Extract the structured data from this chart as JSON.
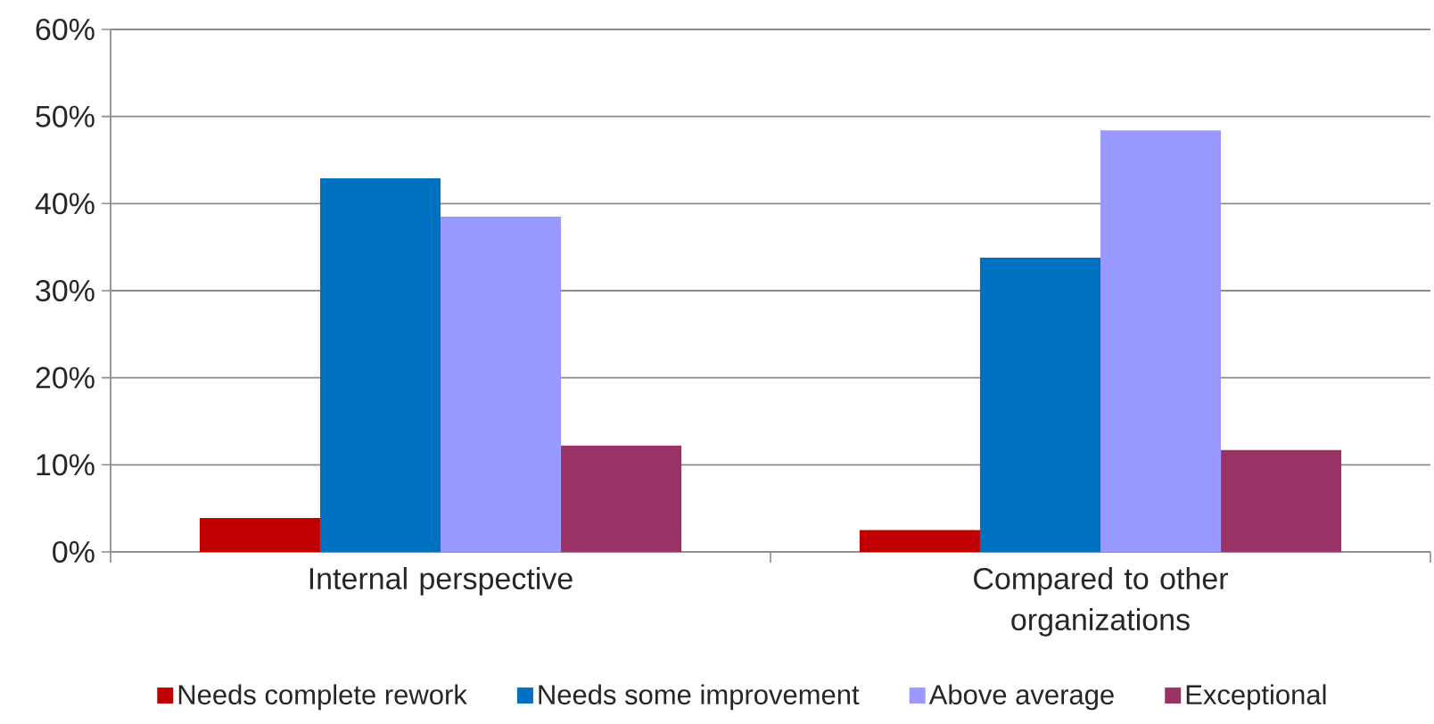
{
  "chart_data": {
    "type": "bar",
    "categories": [
      "Internal perspective",
      "Compared to other organizations"
    ],
    "series": [
      {
        "name": "Needs complete rework",
        "color": "#c00000",
        "values": [
          3.9,
          2.5
        ]
      },
      {
        "name": "Needs some improvement",
        "color": "#0070c0",
        "values": [
          42.9,
          33.8
        ]
      },
      {
        "name": "Above average",
        "color": "#9999ff",
        "values": [
          38.5,
          48.4
        ]
      },
      {
        "name": "Exceptional",
        "color": "#993366",
        "values": [
          12.2,
          11.7
        ]
      }
    ],
    "ylim": [
      0,
      60
    ],
    "yticks": [
      {
        "value": 0,
        "label": "0%"
      },
      {
        "value": 10,
        "label": "10%"
      },
      {
        "value": 20,
        "label": "20%"
      },
      {
        "value": 30,
        "label": "30%"
      },
      {
        "value": 40,
        "label": "40%"
      },
      {
        "value": 50,
        "label": "50%"
      },
      {
        "value": 60,
        "label": "60%"
      }
    ],
    "grid": "y",
    "legend": "bottom"
  }
}
